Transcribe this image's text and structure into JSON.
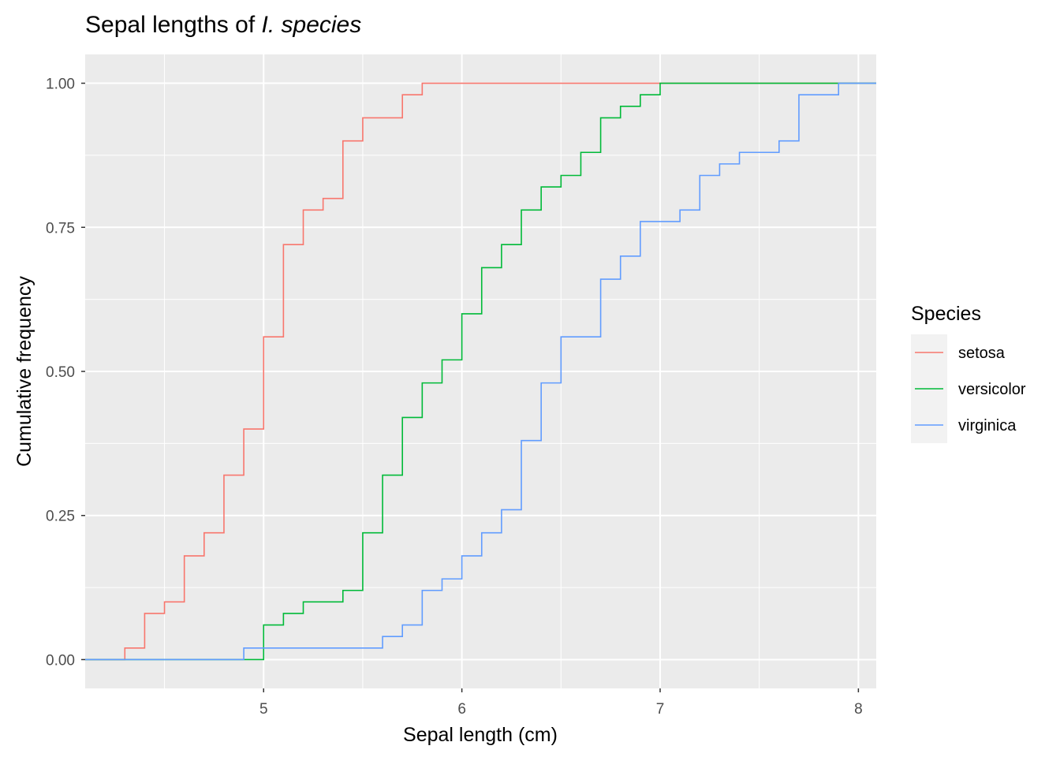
{
  "chart_data": {
    "type": "line",
    "step": true,
    "title_prefix": "Sepal lengths of ",
    "title_italic": "I. species",
    "xlabel": "Sepal length (cm)",
    "ylabel": "Cumulative frequency",
    "xlim": [
      4.1,
      8.09
    ],
    "ylim": [
      -0.05,
      1.05
    ],
    "x_ticks": [
      5,
      6,
      7,
      8
    ],
    "x_tick_labels": [
      "5",
      "6",
      "7",
      "8"
    ],
    "y_ticks": [
      0,
      0.25,
      0.5,
      0.75,
      1
    ],
    "y_tick_labels": [
      "0.00",
      "0.25",
      "0.50",
      "0.75",
      "1.00"
    ],
    "x_minor_ticks": [
      4.5,
      5.5,
      6.5,
      7.5
    ],
    "y_minor_ticks": [
      0.125,
      0.375,
      0.625,
      0.875
    ],
    "grid": true,
    "panel_background": "#ebebeb",
    "legend": {
      "title": "Species",
      "position": "right"
    },
    "series": [
      {
        "name": "setosa",
        "color": "#f8766d",
        "x": [
          4.3,
          4.4,
          4.5,
          4.6,
          4.7,
          4.8,
          4.9,
          5.0,
          5.1,
          5.2,
          5.3,
          5.4,
          5.5,
          5.7,
          5.8
        ],
        "y": [
          0.02,
          0.08,
          0.1,
          0.18,
          0.22,
          0.32,
          0.4,
          0.56,
          0.72,
          0.78,
          0.8,
          0.9,
          0.94,
          0.98,
          1.0
        ]
      },
      {
        "name": "versicolor",
        "color": "#00ba38",
        "x": [
          5.0,
          5.1,
          5.2,
          5.4,
          5.5,
          5.6,
          5.7,
          5.8,
          5.9,
          6.0,
          6.1,
          6.2,
          6.3,
          6.4,
          6.5,
          6.6,
          6.7,
          6.8,
          6.9,
          7.0
        ],
        "y": [
          0.06,
          0.08,
          0.1,
          0.12,
          0.22,
          0.32,
          0.42,
          0.48,
          0.52,
          0.6,
          0.68,
          0.72,
          0.78,
          0.82,
          0.84,
          0.88,
          0.94,
          0.96,
          0.98,
          1.0
        ]
      },
      {
        "name": "virginica",
        "color": "#619cff",
        "x": [
          4.9,
          5.6,
          5.7,
          5.8,
          5.9,
          6.0,
          6.1,
          6.2,
          6.3,
          6.4,
          6.5,
          6.7,
          6.8,
          6.9,
          7.1,
          7.2,
          7.3,
          7.4,
          7.6,
          7.7,
          7.9
        ],
        "y": [
          0.02,
          0.04,
          0.06,
          0.12,
          0.14,
          0.18,
          0.22,
          0.26,
          0.38,
          0.48,
          0.56,
          0.66,
          0.7,
          0.76,
          0.78,
          0.84,
          0.86,
          0.88,
          0.9,
          0.98,
          1.0
        ]
      }
    ]
  }
}
